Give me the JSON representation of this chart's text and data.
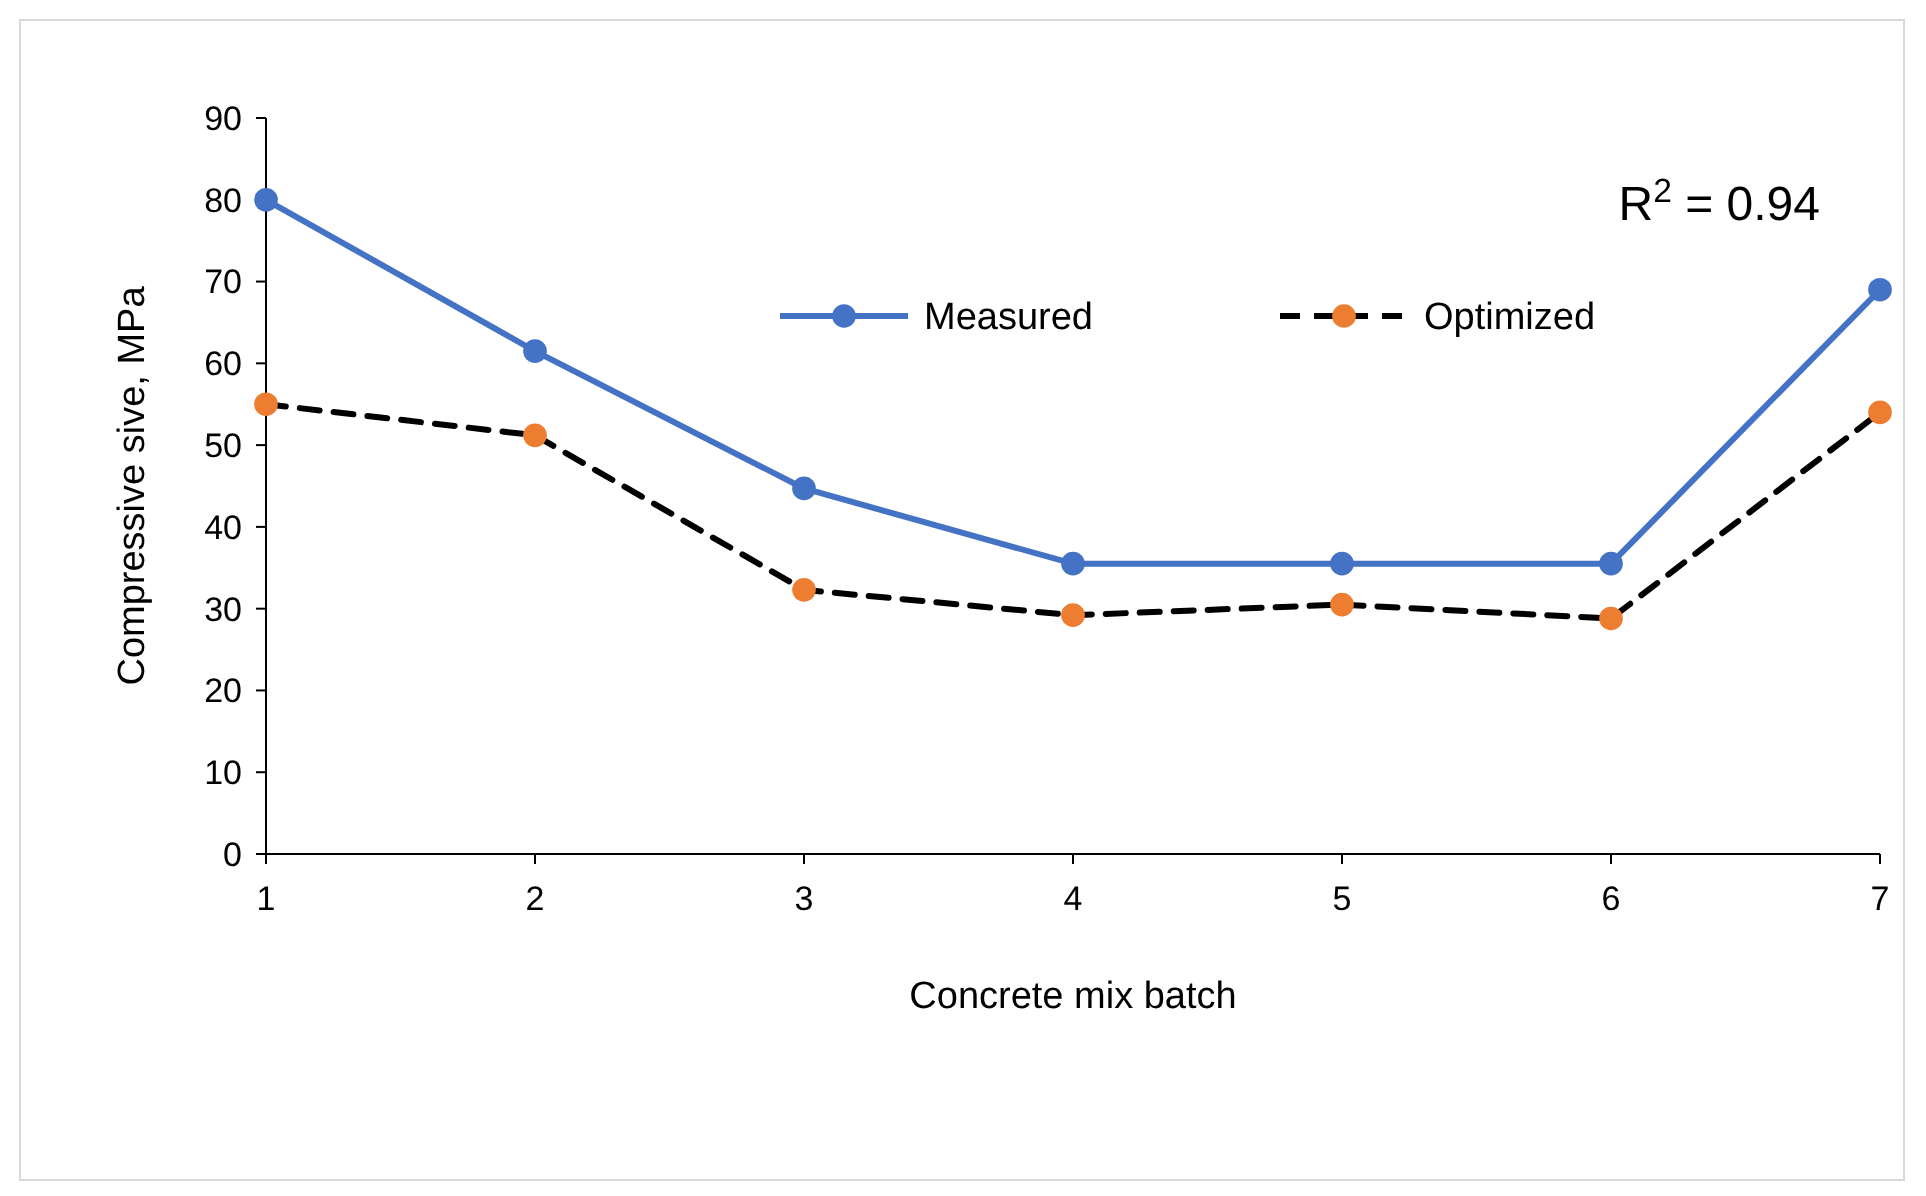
{
  "chart_data": {
    "type": "line",
    "xlabel": "Concrete mix batch",
    "ylabel": "Compressive sive, MPa",
    "x": [
      1,
      2,
      3,
      4,
      5,
      6,
      7
    ],
    "xlim": [
      1,
      7
    ],
    "xticks": [
      1,
      2,
      3,
      4,
      5,
      6,
      7
    ],
    "ylim": [
      0,
      90
    ],
    "yticks": [
      0,
      10,
      20,
      30,
      40,
      50,
      60,
      70,
      80,
      90
    ],
    "grid": false,
    "legend": "top",
    "marker": "circle",
    "annotations": [
      "R$^{2}$ = 0.94"
    ],
    "series": [
      {
        "name": "Measured",
        "color": "#4472c4",
        "line_style": "solid",
        "values": [
          80,
          61.5,
          44.7,
          35.5,
          35.5,
          35.5,
          69
        ]
      },
      {
        "name": "Optimized",
        "color": "#ed7d31",
        "line_style": "dashed",
        "values": [
          55,
          51.2,
          32.3,
          29.2,
          30.5,
          28.8,
          54
        ]
      }
    ]
  }
}
